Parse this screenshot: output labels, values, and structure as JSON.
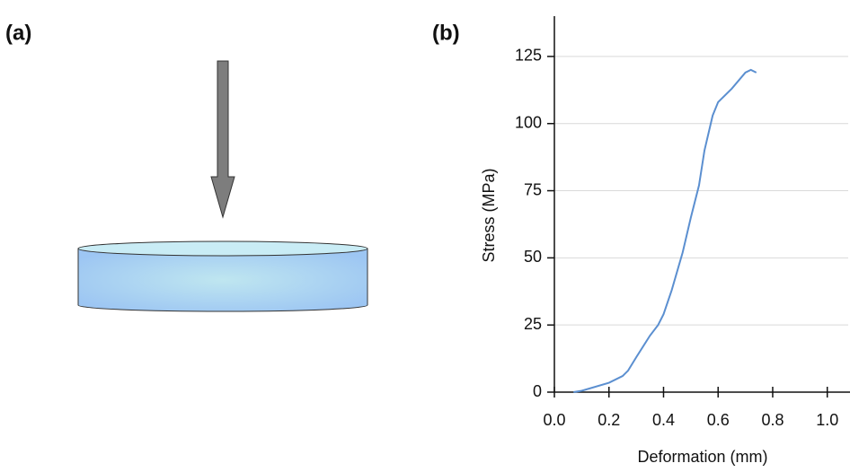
{
  "panel_labels": [
    "(a)",
    "(b)"
  ],
  "chart_data": {
    "type": "line",
    "x_label": "Deformation (mm)",
    "y_label": "Stress (MPa)",
    "x": [
      0.07,
      0.1,
      0.2,
      0.25,
      0.27,
      0.3,
      0.35,
      0.38,
      0.4,
      0.43,
      0.47,
      0.5,
      0.53,
      0.55,
      0.58,
      0.6,
      0.65,
      0.7,
      0.72,
      0.74
    ],
    "values": [
      0,
      0.5,
      3.5,
      6,
      8,
      13,
      21,
      25,
      29,
      38,
      52,
      65,
      77,
      90,
      103,
      108,
      113,
      119,
      120,
      119
    ],
    "color": "#5b8fd0",
    "xlim": [
      0,
      1.08
    ],
    "ylim": [
      0,
      140
    ],
    "xticks": [
      {
        "value": 0,
        "label": "0.0"
      },
      0.2,
      0.4,
      0.6,
      0.8,
      {
        "value": 1,
        "label": "1.0"
      }
    ],
    "yticks": [
      0,
      25,
      50,
      75,
      100,
      125
    ],
    "grid": true
  }
}
